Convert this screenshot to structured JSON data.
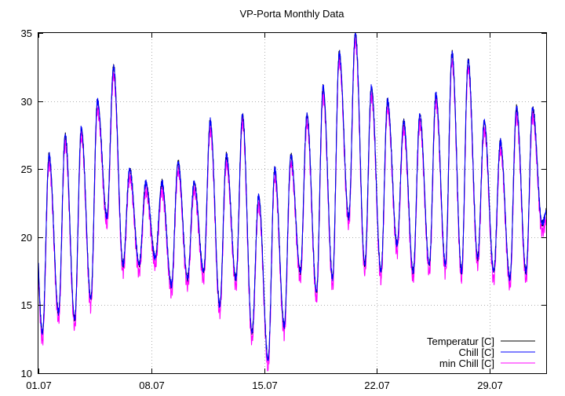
{
  "chart_data": {
    "type": "line",
    "title": "VP-Porta Monthly Data",
    "xlabel": "",
    "ylabel": "",
    "ylim": [
      10,
      35
    ],
    "xlim": [
      1.0,
      32.5
    ],
    "grid": true,
    "legend_position": "bottom-right",
    "y_ticks": [
      10,
      15,
      20,
      25,
      30,
      35
    ],
    "x_ticks": [
      {
        "day": 1,
        "label": "01.07"
      },
      {
        "day": 8,
        "label": "08.07"
      },
      {
        "day": 15,
        "label": "15.07"
      },
      {
        "day": 22,
        "label": "22.07"
      },
      {
        "day": 29,
        "label": "29.07"
      }
    ],
    "daily_extremes": [
      {
        "day": 1,
        "min": 13.0,
        "max": 26.0
      },
      {
        "day": 2,
        "min": 14.5,
        "max": 27.5
      },
      {
        "day": 3,
        "min": 14.0,
        "max": 28.0
      },
      {
        "day": 4,
        "min": 15.5,
        "max": 30.0
      },
      {
        "day": 5,
        "min": 21.5,
        "max": 32.5
      },
      {
        "day": 6,
        "min": 18.0,
        "max": 25.0
      },
      {
        "day": 7,
        "min": 18.0,
        "max": 24.0
      },
      {
        "day": 8,
        "min": 18.5,
        "max": 24.0
      },
      {
        "day": 9,
        "min": 16.5,
        "max": 25.5
      },
      {
        "day": 10,
        "min": 17.0,
        "max": 24.0
      },
      {
        "day": 11,
        "min": 17.5,
        "max": 28.5
      },
      {
        "day": 12,
        "min": 15.0,
        "max": 26.0
      },
      {
        "day": 13,
        "min": 17.0,
        "max": 29.0
      },
      {
        "day": 14,
        "min": 13.0,
        "max": 23.0
      },
      {
        "day": 15,
        "min": 11.0,
        "max": 25.0
      },
      {
        "day": 16,
        "min": 13.5,
        "max": 26.0
      },
      {
        "day": 17,
        "min": 17.5,
        "max": 29.0
      },
      {
        "day": 18,
        "min": 16.0,
        "max": 31.0
      },
      {
        "day": 19,
        "min": 17.0,
        "max": 33.5
      },
      {
        "day": 20,
        "min": 21.5,
        "max": 35.0
      },
      {
        "day": 21,
        "min": 18.0,
        "max": 31.0
      },
      {
        "day": 22,
        "min": 17.5,
        "max": 30.0
      },
      {
        "day": 23,
        "min": 19.5,
        "max": 28.5
      },
      {
        "day": 24,
        "min": 17.5,
        "max": 29.0
      },
      {
        "day": 25,
        "min": 18.0,
        "max": 30.5
      },
      {
        "day": 26,
        "min": 18.0,
        "max": 33.5
      },
      {
        "day": 27,
        "min": 17.5,
        "max": 33.0
      },
      {
        "day": 28,
        "min": 18.5,
        "max": 28.5
      },
      {
        "day": 29,
        "min": 17.5,
        "max": 27.0
      },
      {
        "day": 30,
        "min": 17.0,
        "max": 29.5
      },
      {
        "day": 31,
        "min": 17.5,
        "max": 29.5
      },
      {
        "day": 32,
        "min": 21.0,
        "max": 22.5
      }
    ],
    "series": [
      {
        "name": "Temperatur [C]",
        "color": "#000000",
        "offset": 0.0
      },
      {
        "name": "Chill [C]",
        "color": "#0000ff",
        "offset": 0.0
      },
      {
        "name": "min Chill [C]",
        "color": "#ff00ff",
        "offset": -0.6
      }
    ]
  }
}
